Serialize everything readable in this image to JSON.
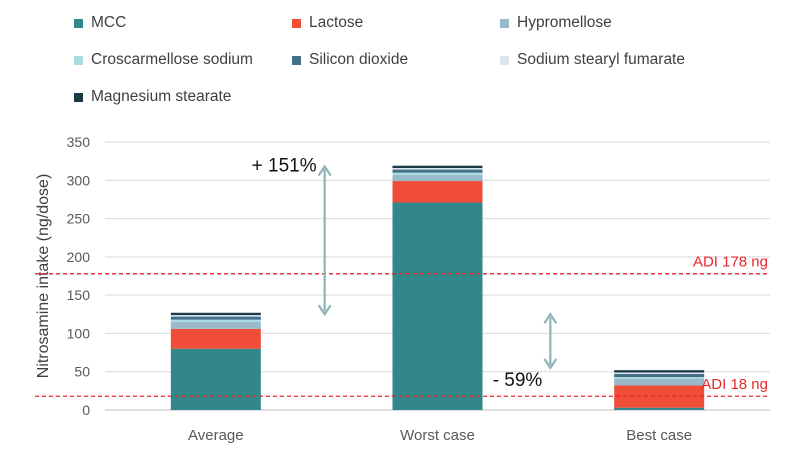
{
  "chart_data": {
    "type": "bar",
    "stacked": true,
    "categories": [
      "Average",
      "Worst case",
      "Best case"
    ],
    "series": [
      {
        "name": "MCC",
        "color": "#31878a",
        "values": [
          80,
          271,
          3
        ]
      },
      {
        "name": "Lactose",
        "color": "#ef4d38",
        "values": [
          26,
          28,
          29
        ]
      },
      {
        "name": "Hypromellose",
        "color": "#9ab9ca",
        "values": [
          9,
          8,
          9
        ]
      },
      {
        "name": "Croscarmellose sodium",
        "color": "#a9dde0",
        "values": [
          3,
          3,
          2
        ]
      },
      {
        "name": "Silicon dioxide",
        "color": "#42708b",
        "values": [
          4,
          4,
          4
        ]
      },
      {
        "name": "Sodium stearyl fumarate",
        "color": "#dde6ee",
        "values": [
          2,
          2,
          2
        ]
      },
      {
        "name": "Magnesium stearate",
        "color": "#1b3a45",
        "values": [
          3,
          3,
          3
        ]
      }
    ],
    "ylabel": "Nitrosamine intake (ng/dose)",
    "xlabel": "",
    "ylim": [
      0,
      350
    ],
    "yticks": [
      0,
      50,
      100,
      150,
      200,
      250,
      300,
      350
    ],
    "grid": true,
    "legend_position": "top",
    "reference_lines": [
      {
        "label": "ADI 178 ng",
        "value": 178,
        "color": "#e8282b"
      },
      {
        "label": "ADI 18 ng",
        "value": 18,
        "color": "#e8282b"
      }
    ],
    "annotations": [
      {
        "text": "+ 151%",
        "from": 125,
        "to": 318,
        "category": "Average",
        "arrow_color": "#8fb4b8"
      },
      {
        "text": "- 59%",
        "from": 55,
        "to": 125,
        "category": "Best case",
        "arrow_color": "#8fb4b8"
      }
    ]
  }
}
